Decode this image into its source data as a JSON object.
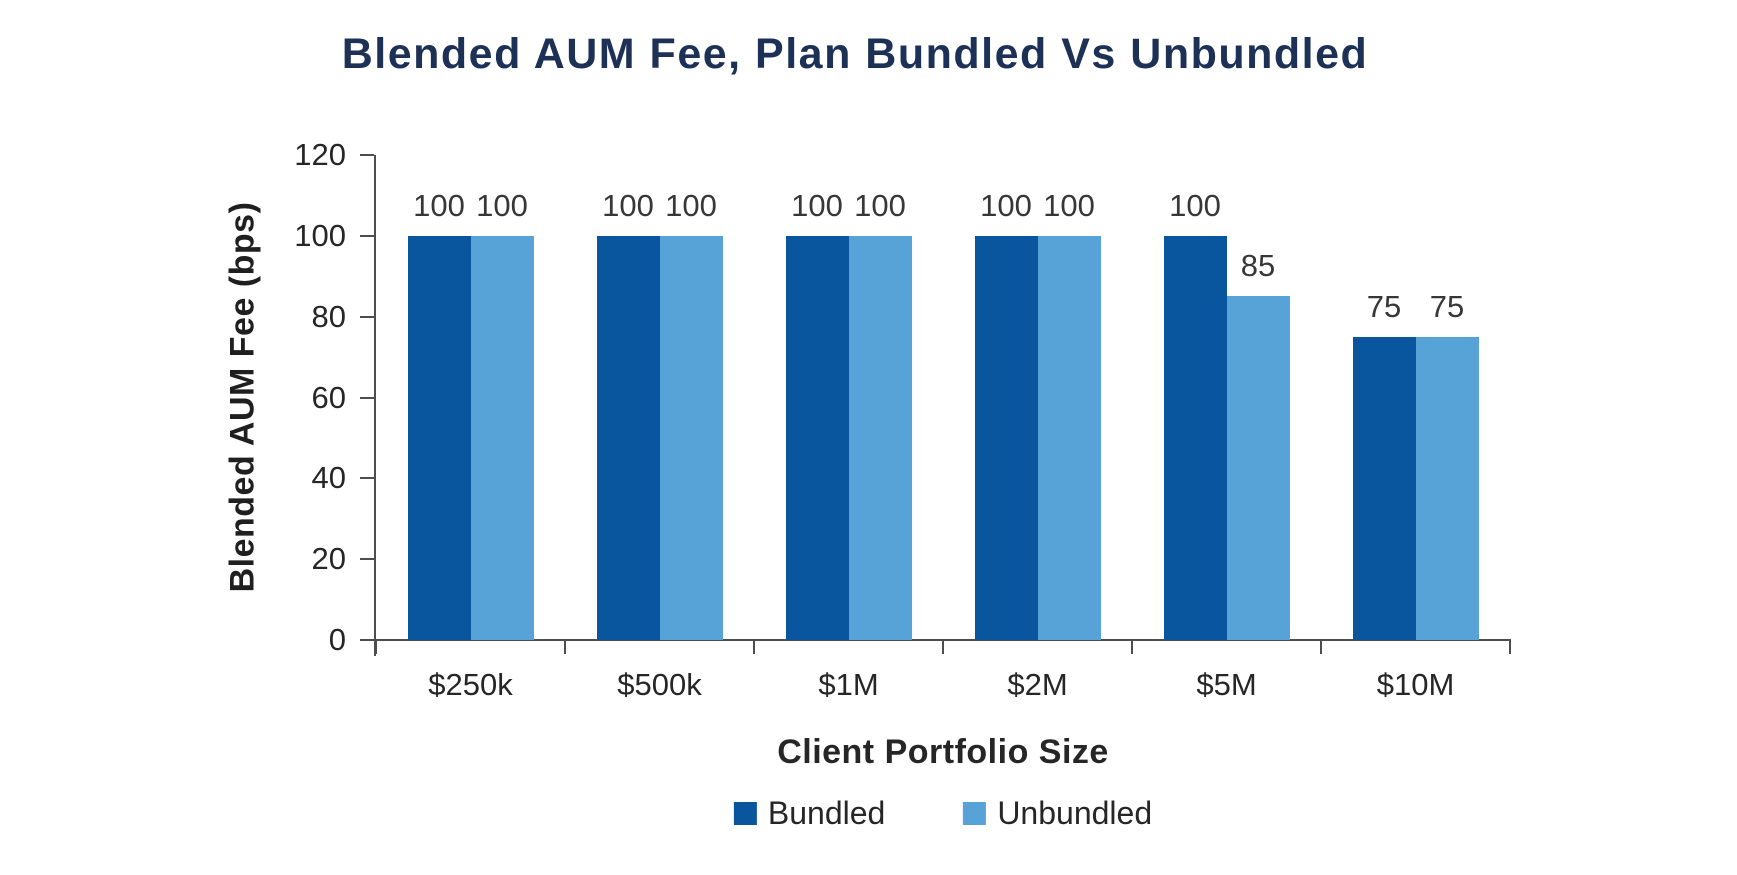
{
  "title": "Blended AUM Fee, Plan Bundled Vs Unbundled",
  "chart_data": {
    "type": "bar",
    "title": "Blended AUM Fee, Plan Bundled Vs Unbundled",
    "xlabel": "Client Portfolio Size",
    "ylabel": "Blended AUM Fee (bps)",
    "categories": [
      "$250k",
      "$500k",
      "$1M",
      "$2M",
      "$5M",
      "$10M"
    ],
    "series": [
      {
        "name": "Bundled",
        "color": "#09559e",
        "values": [
          100,
          100,
          100,
          100,
          100,
          75
        ]
      },
      {
        "name": "Unbundled",
        "color": "#57a3d8",
        "values": [
          100,
          100,
          100,
          100,
          85,
          75
        ]
      }
    ],
    "ylim": [
      0,
      120
    ],
    "yticks": [
      0,
      20,
      40,
      60,
      80,
      100,
      120
    ],
    "grid": false,
    "legend_position": "bottom",
    "value_labels": true
  },
  "colors": {
    "title_text": "#1d3156",
    "axis_line": "#4d4d4d",
    "tick_text": "#262626",
    "value_label_text": "#373737",
    "background": "#ffffff"
  }
}
